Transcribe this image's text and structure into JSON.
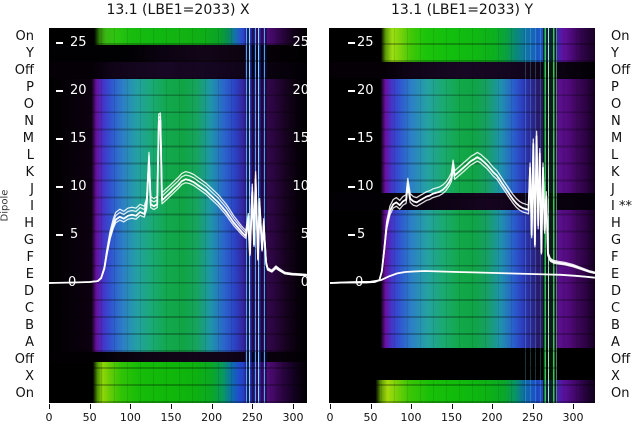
{
  "figure": {
    "titles": {
      "left": "13.1 (LBE1=2033) X",
      "right": "13.1 (LBE1=2033) Y"
    },
    "dipole_label": "Dipole",
    "row_labels_left": [
      "On",
      "Y",
      "Off",
      "P",
      "O",
      "N",
      "M",
      "L",
      "K",
      "J",
      "I",
      "H",
      "G",
      "F",
      "E",
      "D",
      "C",
      "B",
      "A",
      "Off",
      "X",
      "On"
    ],
    "row_labels_right": [
      "On",
      "Y",
      "Off",
      "P",
      "O",
      "N",
      "M",
      "L",
      "K",
      "J",
      "I **",
      "H",
      "G",
      "F",
      "E",
      "D",
      "C",
      "B",
      "A",
      "Off",
      "X",
      "On"
    ],
    "x_tick_labels": [
      "0",
      "50",
      "100",
      "150",
      "200",
      "250",
      "300"
    ],
    "y_tick_labels": [
      "25",
      "20",
      "15",
      "10",
      "5",
      "0"
    ],
    "colors": {
      "curve": "#ffffff",
      "plot_background": "#000000",
      "heat_green": "#10b810",
      "heat_yellow_green": "#a4da0c",
      "heat_teal": "#20a0a4",
      "heat_blue": "#2c52d0",
      "heat_purple": "#5a108c",
      "axis_text": "#111111"
    }
  },
  "chart_data": [
    {
      "type": "heatmap",
      "title": "13.1 (LBE1=2033) X",
      "panel": "left",
      "row_categories_top_to_bottom": [
        "On",
        "Y",
        "Off",
        "P",
        "O",
        "N",
        "M",
        "L",
        "K",
        "J",
        "I",
        "H",
        "G",
        "F",
        "E",
        "D",
        "C",
        "B",
        "A",
        "Off",
        "X",
        "On"
      ],
      "x_axis": {
        "ticks": [
          0,
          50,
          100,
          150,
          200,
          250,
          300
        ],
        "range": [
          0,
          317
        ]
      },
      "overlay_value_axis": {
        "ticks": [
          0,
          5,
          10,
          15,
          20,
          25
        ],
        "range": [
          0,
          27
        ],
        "labels_on_left": true,
        "labels_on_right": true
      },
      "notes": "green = dipole on rows (On; X+On at bottom), dark = off rows (Y, Off), smooth blue-green-purple heat block for rows P..A, vertical blue/white disturbance stripes near x=245-265",
      "series": [
        {
          "name": "X orbit reading (white overlay, bundle of sweeps)",
          "points": [
            [
              0,
              0
            ],
            [
              30,
              0.05
            ],
            [
              50,
              0.1
            ],
            [
              60,
              0.2
            ],
            [
              64,
              0.5
            ],
            [
              68,
              1.5
            ],
            [
              71,
              3
            ],
            [
              75,
              4.8
            ],
            [
              79,
              6
            ],
            [
              82,
              6.6
            ],
            [
              87,
              6.9
            ],
            [
              92,
              6.7
            ],
            [
              97,
              7
            ],
            [
              102,
              7.1
            ],
            [
              107,
              7
            ],
            [
              112,
              7.4
            ],
            [
              117,
              7.2
            ],
            [
              120,
              8
            ],
            [
              123,
              12.8
            ],
            [
              125,
              8.2
            ],
            [
              129,
              8
            ],
            [
              133,
              8.2
            ],
            [
              135,
              16.8
            ],
            [
              137,
              16.9
            ],
            [
              139,
              8.6
            ],
            [
              144,
              9
            ],
            [
              149,
              9.4
            ],
            [
              154,
              9.8
            ],
            [
              159,
              10.2
            ],
            [
              163,
              10.6
            ],
            [
              168,
              10.8
            ],
            [
              173,
              10.7
            ],
            [
              178,
              10.5
            ],
            [
              183,
              10.2
            ],
            [
              188,
              9.9
            ],
            [
              193,
              9.6
            ],
            [
              198,
              9.2
            ],
            [
              203,
              8.8
            ],
            [
              208,
              8.4
            ],
            [
              213,
              7.9
            ],
            [
              218,
              7.4
            ],
            [
              222,
              6.9
            ],
            [
              227,
              6.3
            ],
            [
              232,
              5.8
            ],
            [
              237,
              5.3
            ],
            [
              242,
              4.9
            ],
            [
              245,
              6.5
            ],
            [
              247,
              3
            ],
            [
              250,
              9.5
            ],
            [
              252,
              4
            ],
            [
              254,
              10.8
            ],
            [
              257,
              2.5
            ],
            [
              259,
              8
            ],
            [
              262,
              3.5
            ],
            [
              264,
              6
            ],
            [
              267,
              2
            ],
            [
              269,
              1.4
            ],
            [
              274,
              1.2
            ],
            [
              279,
              1.6
            ],
            [
              284,
              1.3
            ],
            [
              290,
              1
            ],
            [
              299,
              0.9
            ],
            [
              309,
              0.85
            ],
            [
              317,
              0.8
            ]
          ],
          "ghost_offsets": [
            0.45,
            0.8,
            -0.35
          ]
        }
      ]
    },
    {
      "type": "heatmap",
      "title": "13.1 (LBE1=2033) Y",
      "panel": "right",
      "row_categories_top_to_bottom": [
        "On",
        "Y",
        "Off",
        "P",
        "O",
        "N",
        "M",
        "L",
        "K",
        "J",
        "I **",
        "H",
        "G",
        "F",
        "E",
        "D",
        "C",
        "B",
        "A",
        "Off",
        "X",
        "On"
      ],
      "x_axis": {
        "ticks": [
          0,
          50,
          100,
          150,
          200,
          250,
          300
        ],
        "range": [
          0,
          327
        ]
      },
      "overlay_value_axis": {
        "ticks": [
          0,
          5,
          10,
          15,
          20,
          25
        ],
        "range": [
          0,
          27
        ],
        "labels_on_left": true,
        "labels_on_right": false
      },
      "notes": "row I is blanked (marked **); green on-rows at top span On+Y; vertical green disturbance stripes near x=265-280",
      "series": [
        {
          "name": "Y orbit reading (white overlay, bundle of sweeps)",
          "points": [
            [
              0,
              0
            ],
            [
              20,
              0.05
            ],
            [
              45,
              0.05
            ],
            [
              55,
              0.1
            ],
            [
              61,
              0.3
            ],
            [
              64,
              1.2
            ],
            [
              67,
              3.5
            ],
            [
              70,
              6
            ],
            [
              74,
              7.5
            ],
            [
              78,
              8.2
            ],
            [
              82,
              8.4
            ],
            [
              86,
              8.1
            ],
            [
              90,
              8.5
            ],
            [
              94,
              8.7
            ],
            [
              96,
              10.4
            ],
            [
              99,
              8.8
            ],
            [
              103,
              8.5
            ],
            [
              107,
              8.4
            ],
            [
              111,
              8.6
            ],
            [
              115,
              8.8
            ],
            [
              119,
              9
            ],
            [
              123,
              9.1
            ],
            [
              127,
              9.3
            ],
            [
              131,
              9.4
            ],
            [
              135,
              9.5
            ],
            [
              139,
              9.7
            ],
            [
              143,
              10
            ],
            [
              147,
              10.5
            ],
            [
              150,
              11
            ],
            [
              152,
              12.3
            ],
            [
              154,
              11.2
            ],
            [
              158,
              11.5
            ],
            [
              162,
              11.8
            ],
            [
              166,
              12.1
            ],
            [
              170,
              12.4
            ],
            [
              174,
              12.7
            ],
            [
              178,
              12.9
            ],
            [
              182,
              13.1
            ],
            [
              186,
              12.9
            ],
            [
              190,
              12.6
            ],
            [
              194,
              12.3
            ],
            [
              198,
              11.9
            ],
            [
              202,
              11.5
            ],
            [
              206,
              11.2
            ],
            [
              210,
              10.7
            ],
            [
              214,
              10.2
            ],
            [
              218,
              9.7
            ],
            [
              222,
              9.2
            ],
            [
              226,
              8.7
            ],
            [
              230,
              8.3
            ],
            [
              234,
              8
            ],
            [
              238,
              7.8
            ],
            [
              242,
              7.7
            ],
            [
              245,
              7.6
            ],
            [
              247,
              12
            ],
            [
              249,
              5
            ],
            [
              251,
              14.5
            ],
            [
              253,
              4
            ],
            [
              255,
              15.3
            ],
            [
              257,
              6
            ],
            [
              259,
              13.5
            ],
            [
              261,
              3.2
            ],
            [
              263,
              12
            ],
            [
              265,
              5.5
            ],
            [
              267,
              9
            ],
            [
              269,
              3
            ],
            [
              272,
              2.4
            ],
            [
              276,
              2.2
            ],
            [
              282,
              2.1
            ],
            [
              290,
              2
            ],
            [
              300,
              1.8
            ],
            [
              310,
              1.5
            ],
            [
              320,
              1.2
            ],
            [
              327,
              1.05
            ]
          ],
          "ghost_offsets": [
            0.5,
            -0.4
          ]
        },
        {
          "name": "Y reference trace (flat near zero)",
          "points": [
            [
              0,
              0
            ],
            [
              26,
              0.08
            ],
            [
              50,
              0.12
            ],
            [
              63,
              0.3
            ],
            [
              73,
              0.7
            ],
            [
              83,
              1
            ],
            [
              93,
              1.15
            ],
            [
              103,
              1.2
            ],
            [
              117,
              1.25
            ],
            [
              137,
              1.2
            ],
            [
              157,
              1.15
            ],
            [
              177,
              1.1
            ],
            [
              199,
              1.05
            ],
            [
              221,
              1
            ],
            [
              243,
              0.95
            ],
            [
              265,
              0.9
            ],
            [
              285,
              0.85
            ],
            [
              303,
              0.75
            ],
            [
              317,
              0.65
            ],
            [
              327,
              0.55
            ]
          ],
          "ghost_offsets": []
        }
      ]
    }
  ]
}
